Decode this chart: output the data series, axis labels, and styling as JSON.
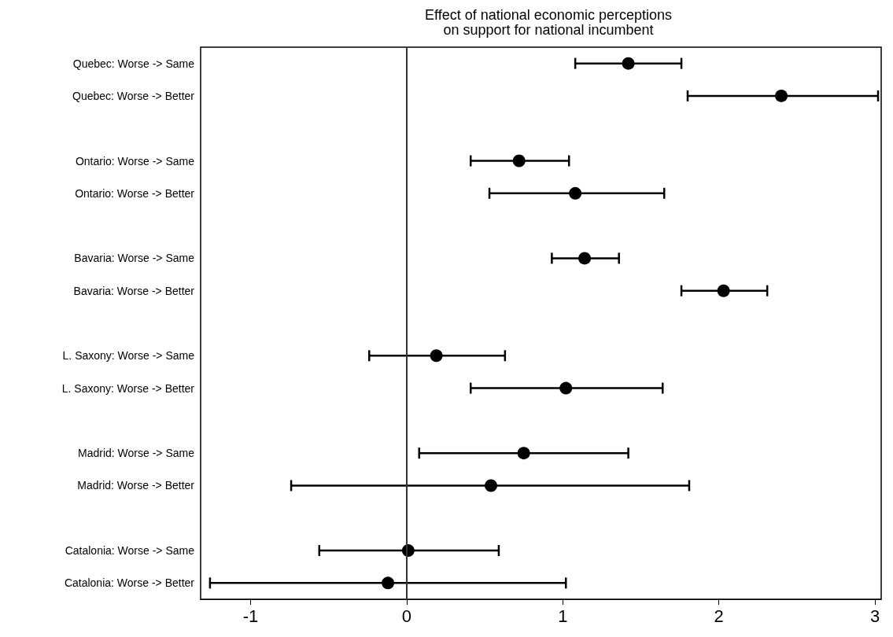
{
  "chart_data": {
    "type": "scatter",
    "title": "Effect of national economic perceptions\non support for national incumbent",
    "categories": [
      "Quebec: Worse -> Same",
      "Quebec: Worse -> Better",
      null,
      "Ontario: Worse -> Same",
      "Ontario: Worse -> Better",
      null,
      "Bavaria: Worse -> Same",
      "Bavaria: Worse -> Better",
      null,
      "L. Saxony: Worse -> Same",
      "L. Saxony: Worse -> Better",
      null,
      "Madrid: Worse -> Same",
      "Madrid: Worse -> Better",
      null,
      "Catalonia: Worse -> Same",
      "Catalonia: Worse -> Better"
    ],
    "series": [
      {
        "color": "#000000",
        "values": [
          1.42,
          2.4,
          null,
          0.72,
          1.08,
          null,
          1.14,
          2.03,
          null,
          0.19,
          1.02,
          null,
          0.75,
          0.54,
          null,
          0.01,
          -0.12
        ],
        "errors": [
          [
            1.08,
            1.76
          ],
          [
            1.8,
            3.02
          ],
          null,
          [
            0.41,
            1.04
          ],
          [
            0.53,
            1.65
          ],
          null,
          [
            0.93,
            1.36
          ],
          [
            1.76,
            2.31
          ],
          null,
          [
            -0.24,
            0.63
          ],
          [
            0.41,
            1.64
          ],
          null,
          [
            0.08,
            1.42
          ],
          [
            -0.74,
            1.81
          ],
          null,
          [
            -0.56,
            0.59
          ],
          [
            -1.26,
            1.02
          ]
        ]
      }
    ],
    "orientation": "horizontal",
    "xlim": [
      -1.32,
      3.04
    ],
    "xticks": [
      -1,
      0,
      1,
      2,
      3
    ],
    "ref_lines": [
      {
        "axis": "x",
        "value": 0,
        "color": "#333333"
      }
    ],
    "marker": "circle",
    "grid": false
  }
}
